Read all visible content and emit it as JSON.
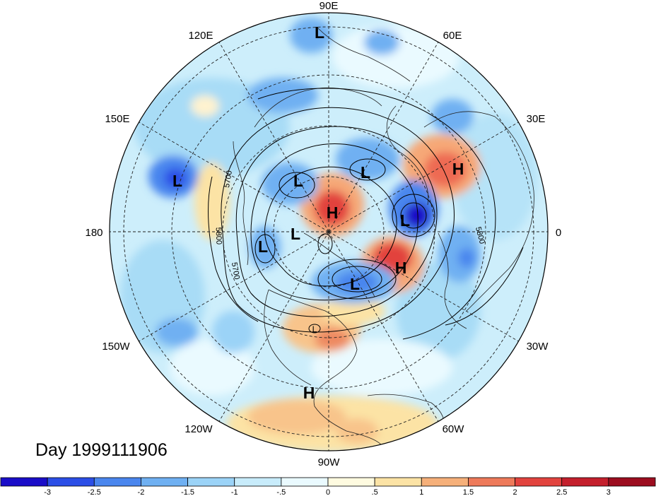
{
  "title": "Day 1999111906",
  "longitude_labels": [
    "90E",
    "60E",
    "30E",
    "0",
    "30W",
    "60W",
    "90W",
    "120W",
    "150W",
    "180",
    "150E",
    "120E"
  ],
  "contour_labels": [
    "5700",
    "5800",
    "5700",
    "5800"
  ],
  "pressure_centers": [
    {
      "type": "L",
      "lon": "90E side (Siberia)"
    },
    {
      "type": "L",
      "lon": "150E (Pacific)"
    },
    {
      "type": "L"
    },
    {
      "type": "L"
    },
    {
      "type": "L"
    },
    {
      "type": "L"
    },
    {
      "type": "L"
    },
    {
      "type": "L"
    },
    {
      "type": "L"
    },
    {
      "type": "H"
    },
    {
      "type": "H"
    },
    {
      "type": "H"
    },
    {
      "type": "H"
    }
  ],
  "colorbar": {
    "tick_labels": [
      "-3",
      "-2.5",
      "-2",
      "-1.5",
      "-1",
      "-.5",
      "0",
      ".5",
      "1",
      "1.5",
      "2",
      "2.5",
      "3"
    ],
    "colors": [
      "#1a0dc8",
      "#2b4ee6",
      "#4a86ee",
      "#6fb0f2",
      "#9bd3f7",
      "#c8ecfb",
      "#eafaff",
      "#fffbe0",
      "#fce3a5",
      "#f6b07a",
      "#ee7a5a",
      "#e2433e",
      "#c41f2c",
      "#9c0d1f"
    ]
  }
}
